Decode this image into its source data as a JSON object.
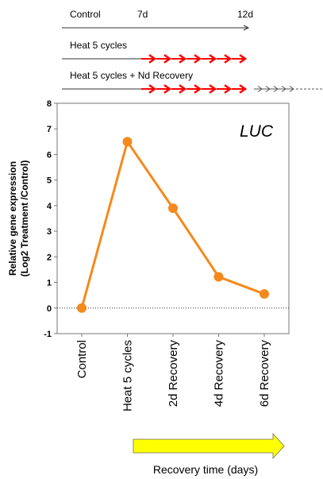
{
  "treatment_schema": {
    "rows": [
      {
        "label": "Control",
        "markers": [
          "7d",
          "12d"
        ]
      },
      {
        "label": "Heat 5 cycles"
      },
      {
        "label": "Heat 5 cycles + Nd Recovery"
      }
    ],
    "heat_arrow_color": "#ff0000"
  },
  "chart_data": {
    "type": "line",
    "title": "LUC",
    "ylabel_line1": "Relative gene expression",
    "ylabel_line2": "(Log2 Treatment /Control)",
    "ylim": [
      -1,
      8
    ],
    "yticks": [
      -1,
      0,
      1,
      2,
      3,
      4,
      5,
      6,
      7,
      8
    ],
    "categories": [
      "Control",
      "Heat 5 cycles",
      "2d Recovery",
      "4d Recovery",
      "6d Recovery"
    ],
    "series": [
      {
        "values": [
          0,
          6.5,
          3.9,
          1.22,
          0.55
        ],
        "color": "#f5891c"
      }
    ],
    "reference_line": 0,
    "grid": false
  },
  "time_arrow": {
    "label": "Recovery time (days)",
    "fill": "#ffff00"
  }
}
